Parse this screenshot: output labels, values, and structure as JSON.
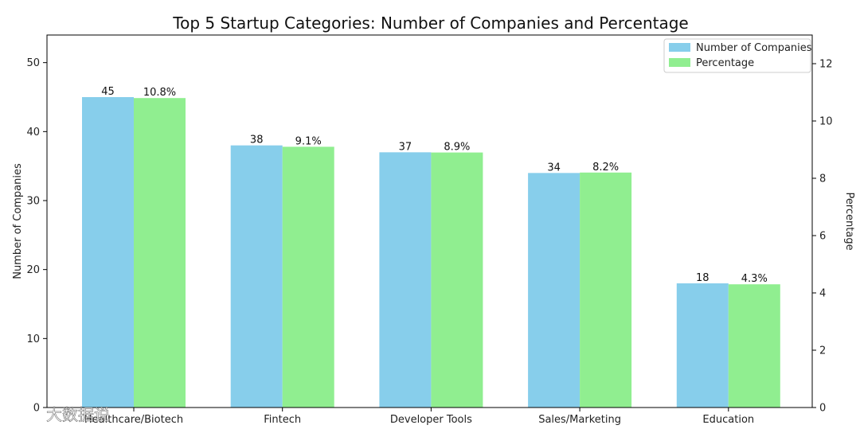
{
  "chart_data": {
    "type": "bar",
    "title": "Top 5 Startup Categories: Number of Companies and Percentage",
    "xlabel": "",
    "ylabel": "Number of Companies",
    "y2label": "Percentage",
    "categories": [
      "Healthcare/Biotech",
      "Fintech",
      "Developer Tools",
      "Sales/Marketing",
      "Education"
    ],
    "series": [
      {
        "name": "Number of Companies",
        "axis": "left",
        "color": "#87CEEB",
        "values": [
          45,
          38,
          37,
          34,
          18
        ],
        "labels": [
          "45",
          "38",
          "37",
          "34",
          "18"
        ]
      },
      {
        "name": "Percentage",
        "axis": "right",
        "color": "#90EE90",
        "values": [
          10.8,
          9.1,
          8.9,
          8.2,
          4.3
        ],
        "labels": [
          "10.8%",
          "9.1%",
          "8.9%",
          "8.2%",
          "4.3%"
        ]
      }
    ],
    "ylim": [
      0,
      54
    ],
    "y2lim": [
      0,
      13
    ],
    "yticks": [
      0,
      10,
      20,
      30,
      40,
      50
    ],
    "y2ticks": [
      0,
      2,
      4,
      6,
      8,
      10,
      12
    ],
    "grid": false,
    "legend_position": "top-right"
  },
  "watermark": "大数据说"
}
